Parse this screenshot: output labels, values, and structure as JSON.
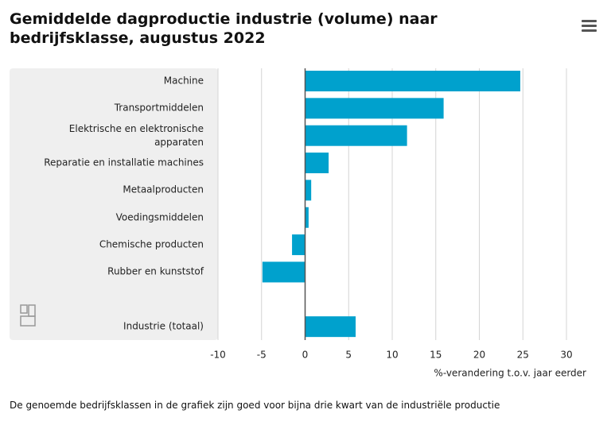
{
  "chart_data": {
    "type": "bar",
    "orientation": "horizontal",
    "title": "Gemiddelde dagproductie industrie (volume) naar bedrijfsklasse, augustus 2022",
    "categories": [
      "Machine",
      "Transportmiddelen",
      "Elektrische en elektronische apparaten",
      "Reparatie en installatie machines",
      "Metaalproducten",
      "Voedingsmiddelen",
      "Chemische producten",
      "Rubber en kunststof",
      null,
      "Industrie (totaal)"
    ],
    "values": [
      24.7,
      15.9,
      11.7,
      2.7,
      0.7,
      0.4,
      -1.5,
      -4.9,
      null,
      5.8
    ],
    "color": "#00a1cd",
    "xlim": [
      -10,
      30
    ],
    "xticks": [
      -10,
      -5,
      0,
      5,
      10,
      15,
      20,
      25,
      30
    ],
    "xlabel": "%-verandering t.o.v. jaar eerder",
    "grid": true,
    "footnote": "De genoemde bedrijfsklassen in de grafiek zijn goed voor bijna drie kwart van de industriële productie"
  }
}
